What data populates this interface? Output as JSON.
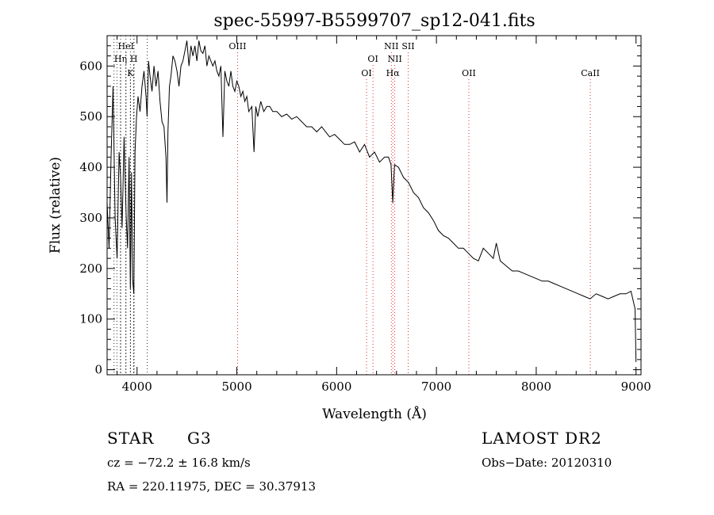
{
  "chart_data": {
    "type": "line",
    "title": "spec-55997-B5599707_sp12-041.fits",
    "xlabel": "Wavelength (Å)",
    "ylabel": "Flux (relative)",
    "xlim": [
      3700,
      9050
    ],
    "ylim": [
      -10,
      660
    ],
    "xticks": [
      4000,
      5000,
      6000,
      7000,
      8000,
      9000
    ],
    "yticks": [
      0,
      100,
      200,
      300,
      400,
      500,
      600
    ],
    "grid": false,
    "series": [
      {
        "name": "spectrum",
        "color": "#000000",
        "x": [
          3700,
          3720,
          3740,
          3760,
          3780,
          3800,
          3820,
          3835,
          3850,
          3870,
          3890,
          3905,
          3920,
          3933,
          3945,
          3955,
          3968,
          3980,
          3995,
          4010,
          4030,
          4050,
          4070,
          4090,
          4101,
          4115,
          4130,
          4150,
          4170,
          4190,
          4210,
          4230,
          4250,
          4270,
          4290,
          4300,
          4310,
          4325,
          4340,
          4360,
          4380,
          4400,
          4420,
          4440,
          4460,
          4480,
          4500,
          4520,
          4540,
          4560,
          4580,
          4600,
          4620,
          4640,
          4660,
          4680,
          4700,
          4720,
          4740,
          4760,
          4780,
          4800,
          4820,
          4840,
          4861,
          4880,
          4900,
          4920,
          4940,
          4960,
          4980,
          5000,
          5020,
          5040,
          5060,
          5080,
          5100,
          5120,
          5150,
          5172,
          5190,
          5210,
          5240,
          5270,
          5300,
          5330,
          5360,
          5400,
          5450,
          5500,
          5550,
          5600,
          5650,
          5700,
          5750,
          5800,
          5850,
          5890,
          5930,
          5980,
          6030,
          6080,
          6130,
          6180,
          6230,
          6280,
          6330,
          6380,
          6430,
          6480,
          6520,
          6545,
          6563,
          6580,
          6620,
          6670,
          6720,
          6770,
          6820,
          6870,
          6920,
          6970,
          7020,
          7070,
          7120,
          7170,
          7220,
          7270,
          7320,
          7370,
          7420,
          7470,
          7520,
          7570,
          7600,
          7640,
          7700,
          7760,
          7820,
          7880,
          7940,
          8000,
          8060,
          8120,
          8180,
          8240,
          8300,
          8360,
          8420,
          8480,
          8540,
          8600,
          8660,
          8720,
          8780,
          8840,
          8900,
          8950,
          8990,
          9000
        ],
        "y": [
          330,
          240,
          420,
          560,
          300,
          220,
          430,
          380,
          280,
          460,
          310,
          240,
          420,
          160,
          390,
          180,
          150,
          430,
          500,
          540,
          510,
          560,
          590,
          540,
          500,
          610,
          580,
          550,
          600,
          560,
          590,
          530,
          490,
          480,
          420,
          330,
          470,
          560,
          580,
          620,
          610,
          590,
          560,
          600,
          610,
          630,
          650,
          600,
          640,
          620,
          640,
          610,
          650,
          630,
          625,
          640,
          600,
          620,
          610,
          600,
          610,
          590,
          580,
          600,
          460,
          590,
          570,
          560,
          590,
          560,
          550,
          570,
          560,
          540,
          550,
          530,
          540,
          510,
          520,
          430,
          520,
          500,
          530,
          510,
          520,
          520,
          510,
          510,
          500,
          505,
          495,
          500,
          490,
          480,
          480,
          470,
          480,
          470,
          460,
          465,
          455,
          445,
          445,
          450,
          430,
          445,
          420,
          430,
          410,
          420,
          420,
          405,
          330,
          405,
          400,
          380,
          370,
          350,
          340,
          320,
          310,
          295,
          275,
          265,
          260,
          250,
          240,
          240,
          230,
          220,
          215,
          240,
          230,
          220,
          250,
          215,
          205,
          195,
          195,
          190,
          185,
          180,
          175,
          175,
          170,
          165,
          160,
          155,
          150,
          145,
          140,
          150,
          145,
          140,
          145,
          150,
          150,
          155,
          120,
          15
        ]
      }
    ],
    "lines": [
      {
        "label": "HeI",
        "x": 3889,
        "color": "#000000",
        "row": 1
      },
      {
        "label": "Hη",
        "x": 3835,
        "color": "#000000",
        "row": 2
      },
      {
        "label": "H",
        "x": 3968,
        "color": "#000000",
        "row": 2
      },
      {
        "label": "K",
        "x": 3933,
        "color": "#000000",
        "row": 3
      },
      {
        "label": "OIII",
        "x": 5007,
        "color": "#cc0000",
        "row": 1
      },
      {
        "label": "OI",
        "x": 6300,
        "color": "#cc0000",
        "row": 3
      },
      {
        "label": "OI",
        "x": 6364,
        "color": "#cc0000",
        "row": 2
      },
      {
        "label": "NII",
        "x": 6548,
        "color": "#cc0000",
        "row": 1
      },
      {
        "label": "SII",
        "x": 6717,
        "color": "#cc0000",
        "row": 1
      },
      {
        "label": "NII",
        "x": 6583,
        "color": "#cc0000",
        "row": 2
      },
      {
        "label": "Hα",
        "x": 6563,
        "color": "#cc0000",
        "row": 3
      },
      {
        "label": "OII",
        "x": 7325,
        "color": "#cc0000",
        "row": 3
      },
      {
        "label": "CaII",
        "x": 8542,
        "color": "#cc0000",
        "row": 3
      }
    ],
    "balmer_lines_x": [
      3770,
      3798,
      3835,
      3889,
      3933,
      3968,
      3970,
      4101
    ]
  },
  "info": {
    "object_class": "STAR",
    "subclass": "G3",
    "survey": "LAMOST DR2",
    "cz": "cz = −72.2 ± 16.8 km/s",
    "obs_date": "Obs−Date: 20120310",
    "coords": "RA = 220.11975, DEC =  30.37913"
  }
}
